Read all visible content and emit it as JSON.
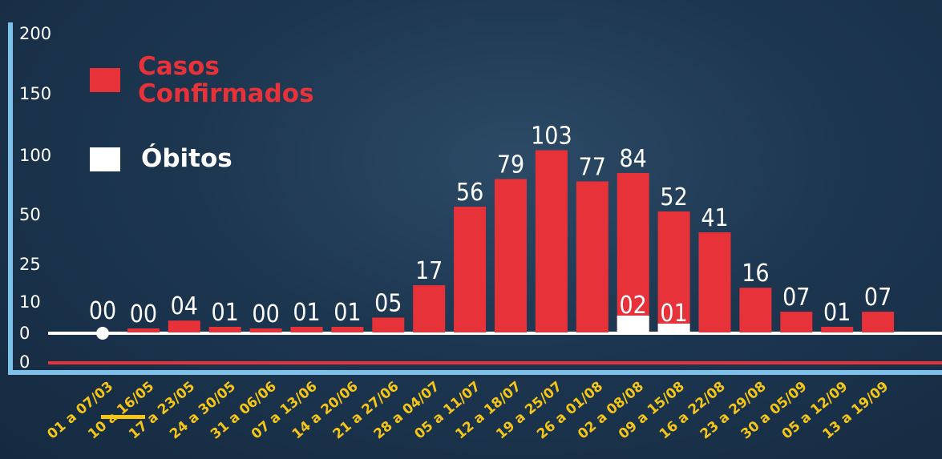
{
  "chart_data": {
    "type": "bar",
    "y_tick_labels": [
      "200",
      "150",
      "100",
      "50",
      "25",
      "10",
      "0",
      "0"
    ],
    "legend": [
      {
        "name": "Casos Confirmados",
        "lines": [
          "Casos",
          "Confirmados"
        ],
        "color": "#e8323a"
      },
      {
        "name": "Óbitos",
        "lines": [
          "Óbitos"
        ],
        "color": "#ffffff"
      }
    ],
    "categories": [
      "01 a 07/03",
      "10 a 16/05",
      "17 a 23/05",
      "24 a 30/05",
      "31 a 06/06",
      "07 a 13/06",
      "14 a 20/06",
      "21 a 27/06",
      "28 a 04/07",
      "05 a 11/07",
      "12 a 18/07",
      "19 a 25/07",
      "26 a 01/08",
      "02 a 08/08",
      "09 a 15/08",
      "16 a 22/08",
      "23 a 29/08",
      "30 a 05/09",
      "05 a 12/09",
      "13 a 19/09"
    ],
    "series": [
      {
        "name": "Casos Confirmados",
        "color": "#e8323a",
        "values": [
          0,
          0,
          4,
          1,
          0,
          1,
          1,
          5,
          17,
          56,
          79,
          103,
          77,
          84,
          52,
          41,
          16,
          7,
          1,
          7
        ],
        "labels": [
          "00",
          "00",
          "04",
          "01",
          "00",
          "01",
          "01",
          "05",
          "17",
          "56",
          "79",
          "103",
          "77",
          "84",
          "52",
          "41",
          "16",
          "07",
          "01",
          "07"
        ]
      },
      {
        "name": "Óbitos",
        "color": "#ffffff",
        "values": [
          0,
          0,
          0,
          0,
          0,
          0,
          0,
          0,
          0,
          0,
          0,
          0,
          0,
          2,
          1,
          0,
          0,
          0,
          0,
          0
        ],
        "labels": [
          "",
          "",
          "",
          "",
          "",
          "",
          "",
          "",
          "",
          "",
          "",
          "",
          "",
          "02",
          "01",
          "",
          "",
          "",
          "",
          ""
        ]
      }
    ],
    "axis_color": "#7fc0ea",
    "category_label_color": "#f5c518"
  }
}
